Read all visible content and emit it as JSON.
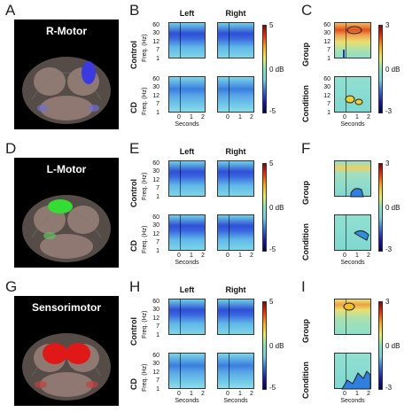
{
  "rows": [
    {
      "letters": [
        "A",
        "B",
        "C"
      ],
      "region": "R-Motor",
      "colors": {
        "blob": "#3a3ae0"
      },
      "col_titles": [
        "Left",
        "Right"
      ],
      "row_labels": [
        "Control",
        "CD"
      ],
      "right_labels": [
        "Group",
        "Condition"
      ],
      "cbar_left": {
        "top": "5",
        "mid": "0 dB",
        "bottom": "-5"
      },
      "cbar_right": {
        "top": "3",
        "mid": "0 dB",
        "bottom": "-3"
      }
    },
    {
      "letters": [
        "D",
        "E",
        "F"
      ],
      "region": "L-Motor",
      "colors": {
        "blob": "#33dd33"
      },
      "col_titles": [
        "Left",
        "Right"
      ],
      "row_labels": [
        "Control",
        "CD"
      ],
      "right_labels": [
        "Group",
        "Condition"
      ],
      "cbar_left": {
        "top": "5",
        "mid": "0 dB",
        "bottom": "-5"
      },
      "cbar_right": {
        "top": "3",
        "mid": "0 dB",
        "bottom": "-3"
      }
    },
    {
      "letters": [
        "G",
        "H",
        "I"
      ],
      "region": "Sensorimotor",
      "colors": {
        "blob": "#e01818"
      },
      "col_titles": [
        "Left",
        "Right"
      ],
      "row_labels": [
        "Control",
        "CD"
      ],
      "right_labels": [
        "Group",
        "Condition"
      ],
      "cbar_left": {
        "top": "5",
        "mid": "0 dB",
        "bottom": "-5"
      },
      "cbar_right": {
        "top": "3",
        "mid": "0 dB",
        "bottom": "-3"
      }
    }
  ],
  "axes": {
    "freq_label": "Freq. (Hz)",
    "freq_ticks": [
      "60",
      "30",
      "12",
      "7",
      "1"
    ],
    "x_ticks": [
      "0",
      "1",
      "2"
    ],
    "x_label": "Seconds"
  }
}
